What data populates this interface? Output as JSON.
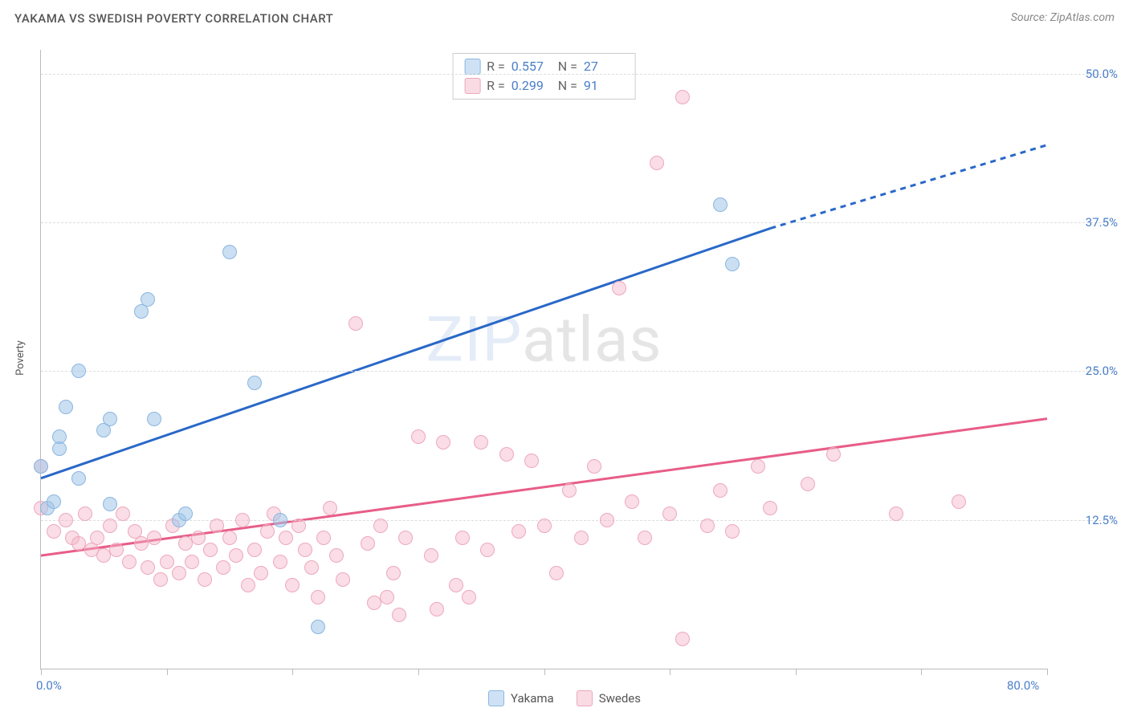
{
  "header": {
    "title": "YAKAMA VS SWEDISH POVERTY CORRELATION CHART",
    "source": "Source: ZipAtlas.com"
  },
  "axes": {
    "y_label": "Poverty",
    "x_min": 0,
    "x_max": 80,
    "y_min": 0,
    "y_max": 52,
    "x_tick_labels": {
      "0": "0.0%",
      "80": "80.0%"
    },
    "x_ticks": [
      0,
      10,
      20,
      30,
      40,
      50,
      60,
      70,
      80
    ],
    "y_tick_labels": {
      "12.5": "12.5%",
      "25": "25.0%",
      "37.5": "37.5%",
      "50": "50.0%"
    },
    "y_gridlines": [
      12.5,
      25,
      37.5,
      50
    ],
    "grid_color": "#dddddd",
    "axis_color": "#bbbbbb",
    "tick_label_color": "#4a7ec9"
  },
  "watermark": {
    "prefix": "ZIP",
    "suffix": "atlas"
  },
  "series": {
    "yakama": {
      "label": "Yakama",
      "color_fill": "#cfe2f5",
      "color_stroke": "#8bb6e0",
      "trend_color": "#2968c8",
      "r_value": "0.557",
      "n_value": "27",
      "trend": {
        "x1": 0,
        "y1": 16,
        "x2": 58,
        "y2": 37,
        "dash_x2": 80,
        "dash_y2": 44
      },
      "points": [
        [
          0,
          17
        ],
        [
          0.5,
          13.5
        ],
        [
          1,
          14
        ],
        [
          1.5,
          18.5
        ],
        [
          1.5,
          19.5
        ],
        [
          2,
          22
        ],
        [
          3,
          25
        ],
        [
          3,
          16
        ],
        [
          5,
          20
        ],
        [
          5.5,
          21
        ],
        [
          5.5,
          13.8
        ],
        [
          8,
          30
        ],
        [
          8.5,
          31
        ],
        [
          9,
          21
        ],
        [
          11,
          12.5
        ],
        [
          11.5,
          13
        ],
        [
          15,
          35
        ],
        [
          17,
          24
        ],
        [
          19,
          12.5
        ],
        [
          22,
          3.5
        ],
        [
          54,
          39
        ],
        [
          55,
          34
        ]
      ]
    },
    "swedes": {
      "label": "Swedes",
      "color_fill": "#f9dbe4",
      "color_stroke": "#eda8bd",
      "trend_color": "#e85d88",
      "r_value": "0.299",
      "n_value": "91",
      "trend": {
        "x1": 0,
        "y1": 9.5,
        "x2": 80,
        "y2": 21
      },
      "points": [
        [
          0,
          17
        ],
        [
          0,
          13.5
        ],
        [
          1,
          11.5
        ],
        [
          2,
          12.5
        ],
        [
          2.5,
          11
        ],
        [
          3,
          10.5
        ],
        [
          3.5,
          13
        ],
        [
          4,
          10
        ],
        [
          4.5,
          11
        ],
        [
          5,
          9.5
        ],
        [
          5.5,
          12
        ],
        [
          6,
          10
        ],
        [
          6.5,
          13
        ],
        [
          7,
          9
        ],
        [
          7.5,
          11.5
        ],
        [
          8,
          10.5
        ],
        [
          8.5,
          8.5
        ],
        [
          9,
          11
        ],
        [
          9.5,
          7.5
        ],
        [
          10,
          9
        ],
        [
          10.5,
          12
        ],
        [
          11,
          8
        ],
        [
          11.5,
          10.5
        ],
        [
          12,
          9
        ],
        [
          12.5,
          11
        ],
        [
          13,
          7.5
        ],
        [
          13.5,
          10
        ],
        [
          14,
          12
        ],
        [
          14.5,
          8.5
        ],
        [
          15,
          11
        ],
        [
          15.5,
          9.5
        ],
        [
          16,
          12.5
        ],
        [
          16.5,
          7
        ],
        [
          17,
          10
        ],
        [
          17.5,
          8
        ],
        [
          18,
          11.5
        ],
        [
          18.5,
          13
        ],
        [
          19,
          9
        ],
        [
          19.5,
          11
        ],
        [
          20,
          7
        ],
        [
          20.5,
          12
        ],
        [
          21,
          10
        ],
        [
          21.5,
          8.5
        ],
        [
          22,
          6
        ],
        [
          22.5,
          11
        ],
        [
          23,
          13.5
        ],
        [
          23.5,
          9.5
        ],
        [
          24,
          7.5
        ],
        [
          25,
          29
        ],
        [
          26,
          10.5
        ],
        [
          26.5,
          5.5
        ],
        [
          27,
          12
        ],
        [
          27.5,
          6
        ],
        [
          28,
          8
        ],
        [
          28.5,
          4.5
        ],
        [
          29,
          11
        ],
        [
          30,
          19.5
        ],
        [
          31,
          9.5
        ],
        [
          31.5,
          5
        ],
        [
          32,
          19
        ],
        [
          33,
          7
        ],
        [
          33.5,
          11
        ],
        [
          34,
          6
        ],
        [
          35,
          19
        ],
        [
          35.5,
          10
        ],
        [
          37,
          18
        ],
        [
          38,
          11.5
        ],
        [
          39,
          17.5
        ],
        [
          40,
          12
        ],
        [
          41,
          8
        ],
        [
          42,
          15
        ],
        [
          43,
          11
        ],
        [
          44,
          17
        ],
        [
          45,
          12.5
        ],
        [
          46,
          32
        ],
        [
          47,
          14
        ],
        [
          48,
          11
        ],
        [
          49,
          42.5
        ],
        [
          50,
          13
        ],
        [
          51,
          2.5
        ],
        [
          51,
          48
        ],
        [
          53,
          12
        ],
        [
          54,
          15
        ],
        [
          55,
          11.5
        ],
        [
          57,
          17
        ],
        [
          58,
          13.5
        ],
        [
          61,
          15.5
        ],
        [
          63,
          18
        ],
        [
          68,
          13
        ],
        [
          73,
          14
        ]
      ]
    }
  },
  "legend_top": [
    {
      "series": "yakama",
      "r_label": "R =",
      "n_label": "N ="
    },
    {
      "series": "swedes",
      "r_label": "R =",
      "n_label": "N ="
    }
  ],
  "legend_bottom": [
    {
      "series": "yakama"
    },
    {
      "series": "swedes"
    }
  ]
}
